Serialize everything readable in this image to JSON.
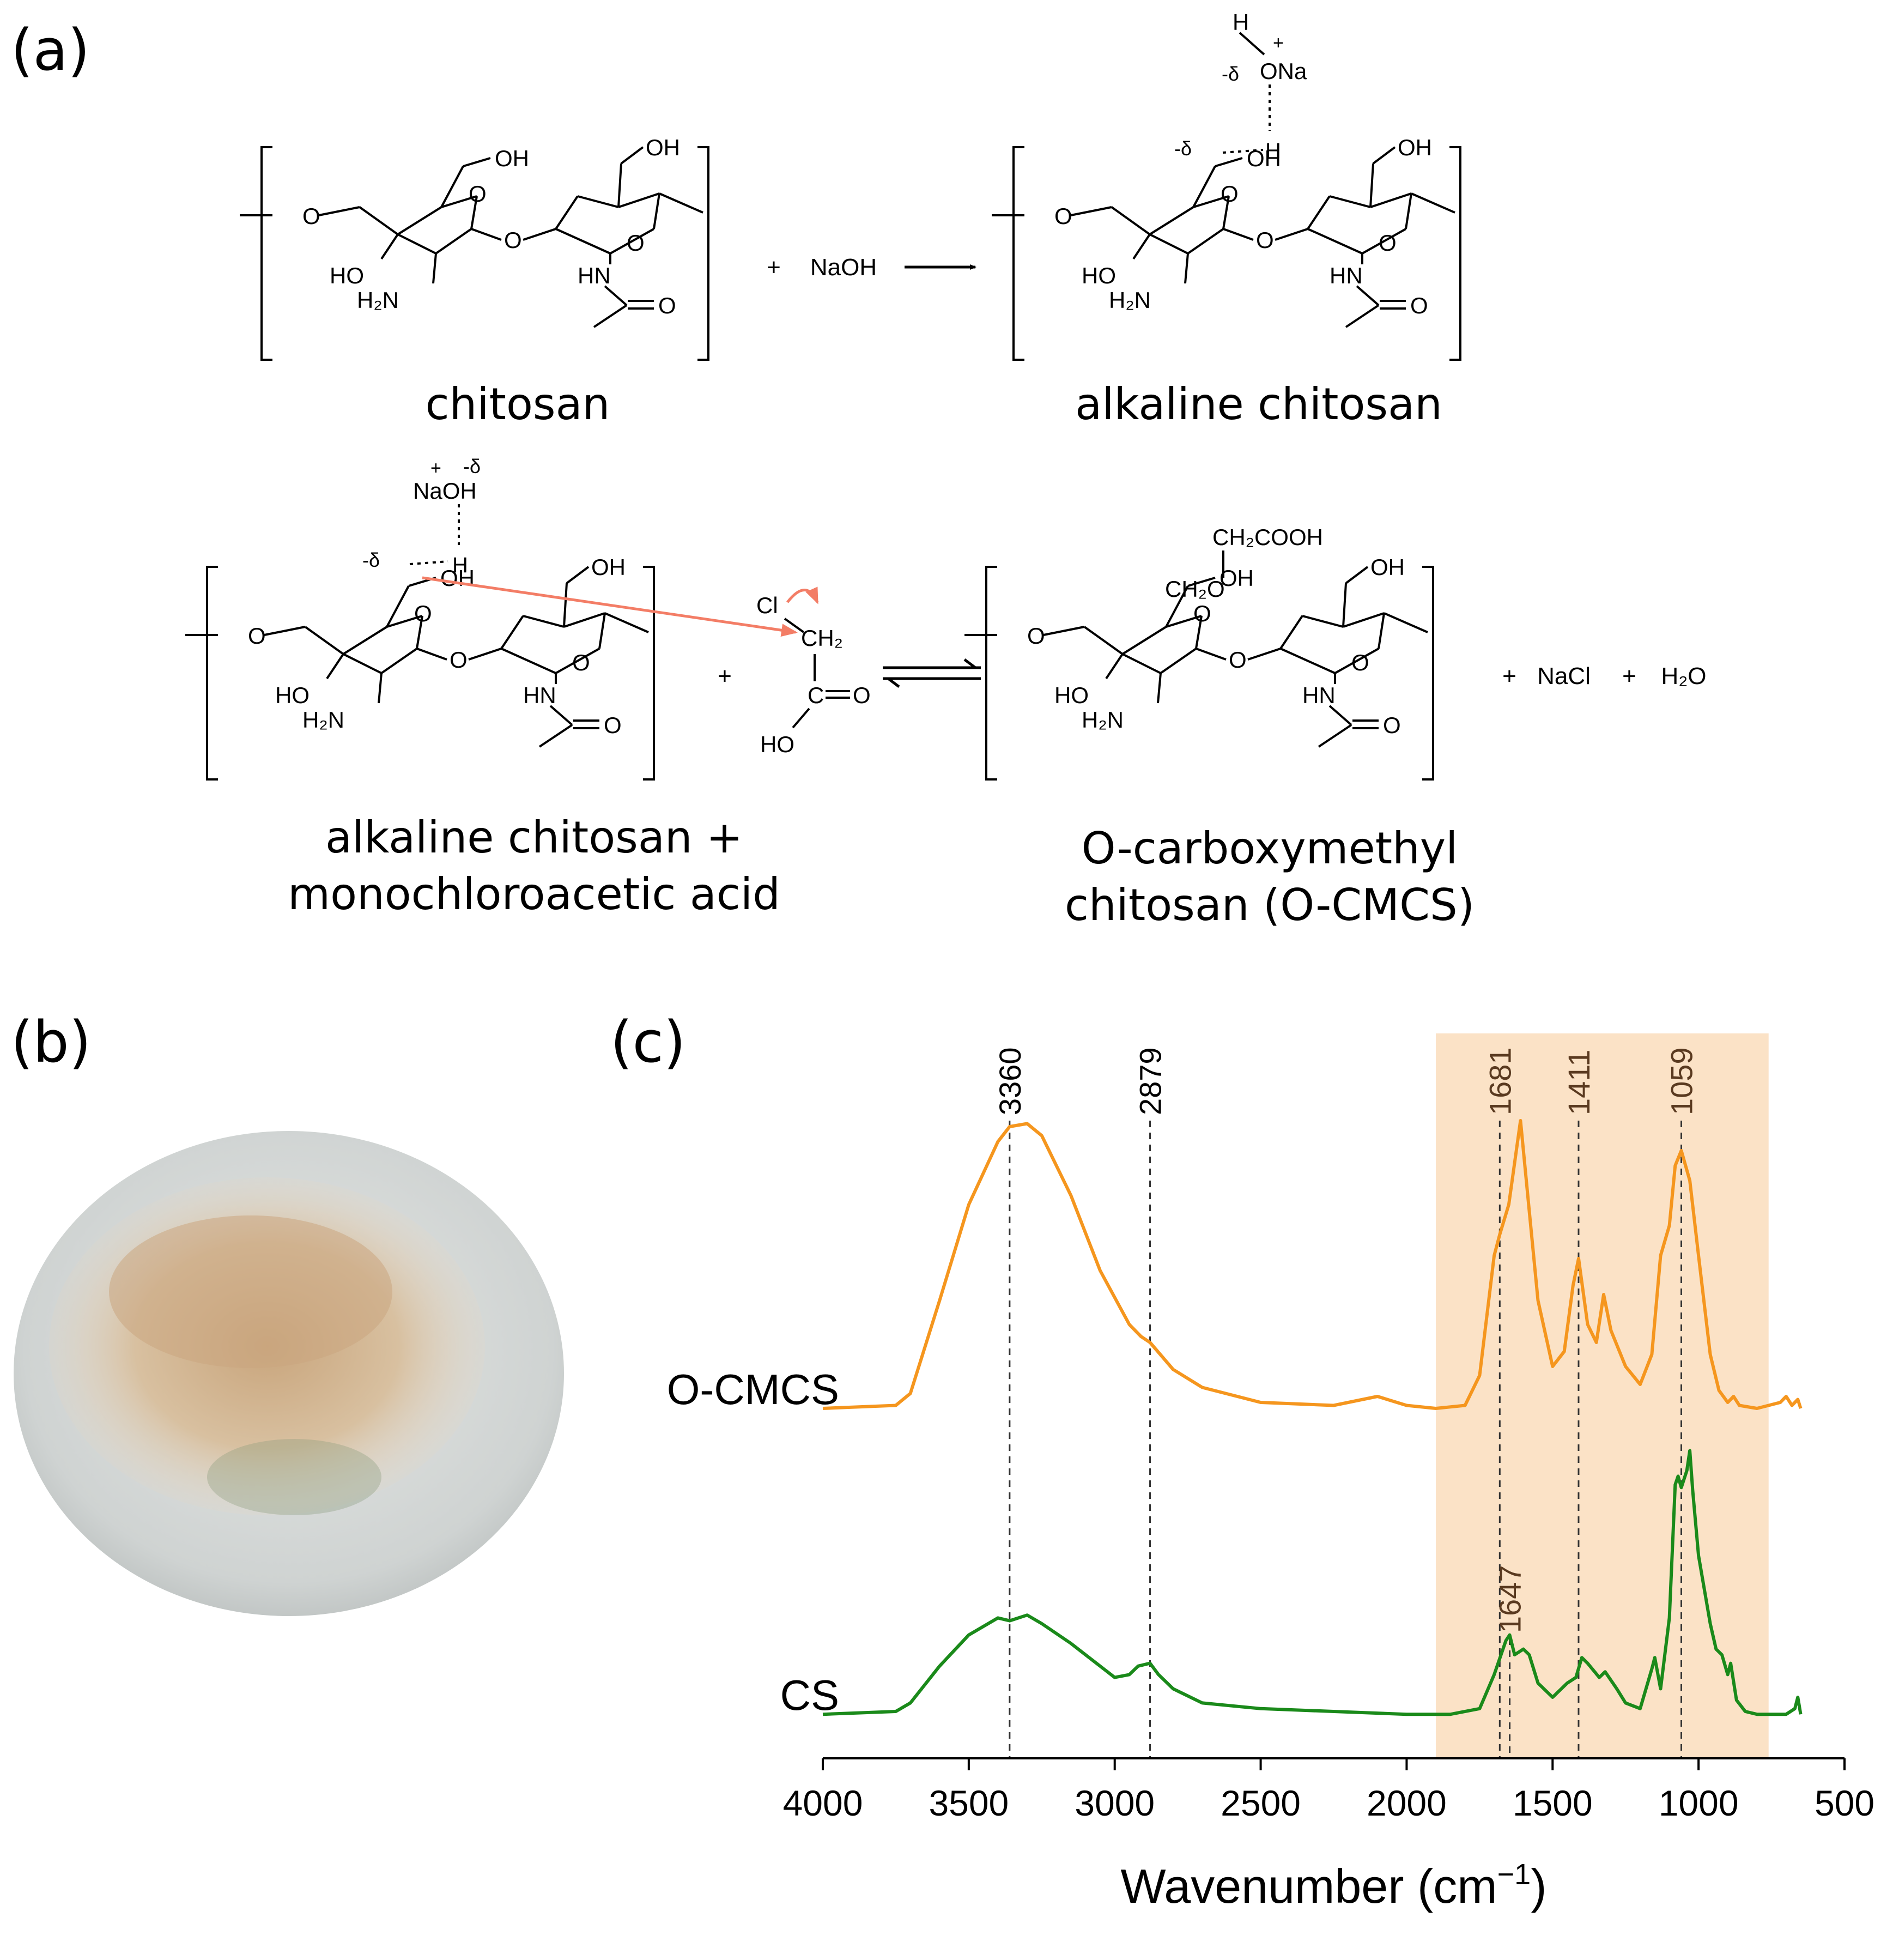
{
  "panels": {
    "a": "(a)",
    "b": "(b)",
    "c": "(c)"
  },
  "scheme": {
    "captions": {
      "chitosan": "chitosan",
      "alkaline_chitosan": "alkaline chitosan",
      "reactants_line1": "alkaline chitosan +",
      "reactants_line2": "monochloroacetic acid",
      "product_line1": "O-carboxymethyl",
      "product_line2": "chitosan (O-CMCS)"
    },
    "atoms": {
      "oh": "OH",
      "ho": "HO",
      "o": "O",
      "h2n": "H₂N",
      "hn": "HN",
      "plus": "+",
      "naoh": "NaOH",
      "h": "H",
      "ona": "ONa",
      "delta_neg": "-δ",
      "na": "Na",
      "cl": "Cl",
      "ch2": "CH₂",
      "c": "C",
      "eq_o": "=O",
      "ch2cooh": "CH₂COOH",
      "ch2o": "CH₂O",
      "nacl": "NaCl",
      "h2o": "H₂O",
      "plus_charge": "+"
    }
  },
  "photo": {
    "colors": {
      "background": "#ececec",
      "dish": "#c9cdcc",
      "powder": "#d5bd9c",
      "shadow": "#8a9a7a"
    }
  },
  "chart_data": {
    "type": "line",
    "title": "",
    "xlabel": "Wavenumber (cm⁻¹)",
    "xlabel_main": "Wavenumber (cm",
    "xlabel_sup": "−1",
    "xlabel_close": ")",
    "ylabel": "",
    "xlim": [
      4000,
      500
    ],
    "x_reversed": true,
    "xticks": [
      4000,
      3500,
      3000,
      2500,
      2000,
      1500,
      1000,
      500
    ],
    "highlight_region": [
      1900,
      760
    ],
    "highlight_color": "#fbe2c6",
    "series": [
      {
        "name": "O-CMCS",
        "color": "#f5961e",
        "points": [
          [
            4000,
            0.04
          ],
          [
            3750,
            0.05
          ],
          [
            3700,
            0.09
          ],
          [
            3600,
            0.4
          ],
          [
            3500,
            0.72
          ],
          [
            3400,
            0.93
          ],
          [
            3360,
            0.98
          ],
          [
            3300,
            0.99
          ],
          [
            3250,
            0.95
          ],
          [
            3150,
            0.75
          ],
          [
            3050,
            0.5
          ],
          [
            2950,
            0.32
          ],
          [
            2910,
            0.28
          ],
          [
            2879,
            0.26
          ],
          [
            2800,
            0.17
          ],
          [
            2700,
            0.11
          ],
          [
            2500,
            0.06
          ],
          [
            2250,
            0.05
          ],
          [
            2100,
            0.08
          ],
          [
            2000,
            0.05
          ],
          [
            1900,
            0.04
          ],
          [
            1800,
            0.05
          ],
          [
            1750,
            0.15
          ],
          [
            1700,
            0.55
          ],
          [
            1681,
            0.62
          ],
          [
            1650,
            0.72
          ],
          [
            1610,
            1.0
          ],
          [
            1580,
            0.7
          ],
          [
            1550,
            0.4
          ],
          [
            1500,
            0.18
          ],
          [
            1460,
            0.23
          ],
          [
            1430,
            0.45
          ],
          [
            1411,
            0.54
          ],
          [
            1380,
            0.32
          ],
          [
            1350,
            0.26
          ],
          [
            1325,
            0.42
          ],
          [
            1300,
            0.3
          ],
          [
            1250,
            0.18
          ],
          [
            1200,
            0.12
          ],
          [
            1160,
            0.22
          ],
          [
            1130,
            0.55
          ],
          [
            1100,
            0.65
          ],
          [
            1080,
            0.85
          ],
          [
            1059,
            0.9
          ],
          [
            1030,
            0.8
          ],
          [
            1000,
            0.55
          ],
          [
            960,
            0.22
          ],
          [
            930,
            0.1
          ],
          [
            900,
            0.06
          ],
          [
            880,
            0.08
          ],
          [
            860,
            0.05
          ],
          [
            800,
            0.04
          ],
          [
            720,
            0.06
          ],
          [
            700,
            0.08
          ],
          [
            680,
            0.05
          ],
          [
            660,
            0.07
          ],
          [
            650,
            0.04
          ]
        ],
        "peaks": [
          3360,
          2879,
          1681,
          1411,
          1059
        ]
      },
      {
        "name": "CS",
        "color": "#1a8a1a",
        "points": [
          [
            4000,
            0.04
          ],
          [
            3750,
            0.05
          ],
          [
            3700,
            0.08
          ],
          [
            3600,
            0.21
          ],
          [
            3500,
            0.32
          ],
          [
            3400,
            0.38
          ],
          [
            3360,
            0.37
          ],
          [
            3300,
            0.39
          ],
          [
            3250,
            0.36
          ],
          [
            3150,
            0.29
          ],
          [
            3100,
            0.25
          ],
          [
            3000,
            0.17
          ],
          [
            2950,
            0.18
          ],
          [
            2920,
            0.21
          ],
          [
            2879,
            0.22
          ],
          [
            2850,
            0.18
          ],
          [
            2800,
            0.13
          ],
          [
            2700,
            0.08
          ],
          [
            2500,
            0.06
          ],
          [
            2250,
            0.05
          ],
          [
            2000,
            0.04
          ],
          [
            1850,
            0.04
          ],
          [
            1750,
            0.06
          ],
          [
            1700,
            0.18
          ],
          [
            1660,
            0.3
          ],
          [
            1647,
            0.32
          ],
          [
            1630,
            0.25
          ],
          [
            1600,
            0.27
          ],
          [
            1580,
            0.25
          ],
          [
            1550,
            0.15
          ],
          [
            1500,
            0.1
          ],
          [
            1450,
            0.15
          ],
          [
            1420,
            0.17
          ],
          [
            1400,
            0.24
          ],
          [
            1380,
            0.22
          ],
          [
            1340,
            0.17
          ],
          [
            1320,
            0.19
          ],
          [
            1280,
            0.13
          ],
          [
            1250,
            0.08
          ],
          [
            1200,
            0.06
          ],
          [
            1160,
            0.2
          ],
          [
            1150,
            0.24
          ],
          [
            1130,
            0.13
          ],
          [
            1100,
            0.38
          ],
          [
            1080,
            0.85
          ],
          [
            1070,
            0.88
          ],
          [
            1059,
            0.84
          ],
          [
            1040,
            0.9
          ],
          [
            1030,
            0.97
          ],
          [
            1020,
            0.83
          ],
          [
            1000,
            0.6
          ],
          [
            960,
            0.36
          ],
          [
            940,
            0.27
          ],
          [
            920,
            0.25
          ],
          [
            900,
            0.18
          ],
          [
            890,
            0.22
          ],
          [
            870,
            0.09
          ],
          [
            840,
            0.05
          ],
          [
            800,
            0.04
          ],
          [
            700,
            0.04
          ],
          [
            670,
            0.06
          ],
          [
            660,
            0.1
          ],
          [
            650,
            0.04
          ]
        ],
        "peaks": [
          1647
        ]
      }
    ],
    "peak_labels": [
      {
        "value": 3360,
        "label": "3360",
        "series": "O-CMCS"
      },
      {
        "value": 2879,
        "label": "2879",
        "series": "O-CMCS"
      },
      {
        "value": 1681,
        "label": "1681",
        "series": "O-CMCS"
      },
      {
        "value": 1411,
        "label": "1411",
        "series": "O-CMCS"
      },
      {
        "value": 1059,
        "label": "1059",
        "series": "O-CMCS"
      },
      {
        "value": 1647,
        "label": "1647",
        "series": "CS"
      }
    ],
    "grid": false,
    "legend": "inline"
  }
}
